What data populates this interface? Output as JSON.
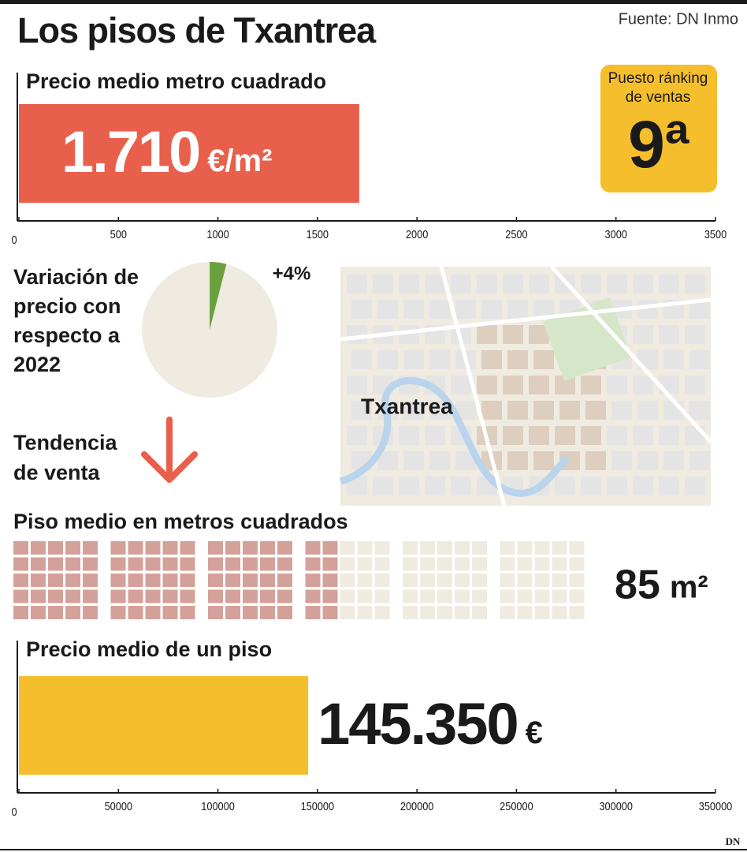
{
  "title": "Los pisos de Txantrea",
  "source": "Fuente: DN Inmo",
  "ranking": {
    "label": "Puesto ránking de ventas",
    "value": "9ª"
  },
  "trend": {
    "label": "Tendencia de venta",
    "direction": "down",
    "color": "#e8604c"
  },
  "map": {
    "label": "Txantrea"
  },
  "logo": "DN",
  "chart_data": [
    {
      "type": "bar",
      "orientation": "horizontal",
      "title": "Precio medio metro cuadrado",
      "values": [
        1710
      ],
      "value_labels": [
        "1.710"
      ],
      "unit": "€/m²",
      "color": "#e8604c",
      "label_color": "#ffffff",
      "label_inside": true,
      "xlim": [
        0,
        3500
      ],
      "xticks": [
        0,
        500,
        1000,
        1500,
        2000,
        2500,
        3000,
        3500
      ]
    },
    {
      "type": "pie",
      "title": "Variación de precio con respecto a 2022",
      "values": [
        4
      ],
      "value_labels": [
        "+4%"
      ],
      "color": "#6aa13e",
      "background": "#efebe1"
    },
    {
      "type": "waffle",
      "title": "Piso medio en metros cuadrados",
      "values": [
        85
      ],
      "value_labels": [
        "85"
      ],
      "unit": "m²",
      "max": 150,
      "color": "#d4a19a",
      "background": "#efebe1"
    },
    {
      "type": "bar",
      "orientation": "horizontal",
      "title": "Precio medio de un piso",
      "values": [
        145350
      ],
      "value_labels": [
        "145.350"
      ],
      "unit": "€",
      "color": "#f5be2d",
      "label_color": "#1a1a1a",
      "label_inside": false,
      "xlim": [
        0,
        350000
      ],
      "xticks": [
        0,
        50000,
        100000,
        150000,
        200000,
        250000,
        300000,
        350000
      ]
    }
  ]
}
